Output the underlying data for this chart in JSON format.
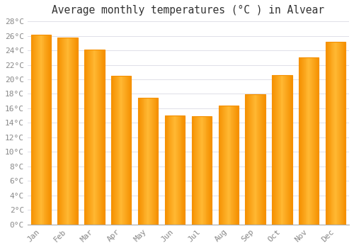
{
  "title": "Average monthly temperatures (°C ) in Alvear",
  "months": [
    "Jan",
    "Feb",
    "Mar",
    "Apr",
    "May",
    "Jun",
    "Jul",
    "Aug",
    "Sep",
    "Oct",
    "Nov",
    "Dec"
  ],
  "values": [
    26.2,
    25.8,
    24.1,
    20.5,
    17.5,
    15.0,
    14.9,
    16.4,
    17.9,
    20.6,
    23.0,
    25.2
  ],
  "bar_color_center": "#FFB833",
  "bar_color_edge": "#F59000",
  "background_color": "#FFFFFF",
  "grid_color": "#E0E0E8",
  "ylim": [
    0,
    28
  ],
  "ytick_step": 2,
  "title_fontsize": 10.5,
  "tick_fontsize": 8,
  "tick_color": "#888888",
  "font_family": "monospace",
  "bar_width": 0.75
}
